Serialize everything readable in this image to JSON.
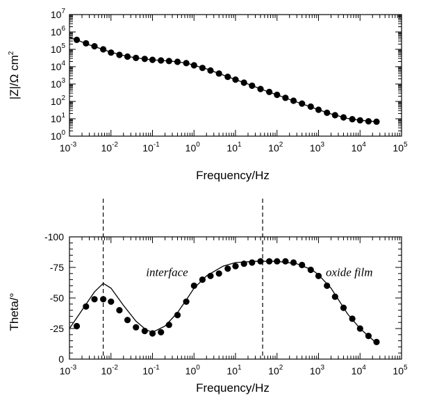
{
  "chart_data": [
    {
      "type": "scatter",
      "name_key": "impedance-modulus",
      "xlabel": "Frequency/Hz",
      "ylabel": "|Z|/Ω cm²",
      "x_scale": "log",
      "y_scale": "log",
      "xlim": [
        0.001,
        100000
      ],
      "ylim": [
        1,
        10000000
      ],
      "x_ticks": [
        {
          "base": "10",
          "exp": "-3"
        },
        {
          "base": "10",
          "exp": "-2"
        },
        {
          "base": "10",
          "exp": "-1"
        },
        {
          "base": "10",
          "exp": "0"
        },
        {
          "base": "10",
          "exp": "1"
        },
        {
          "base": "10",
          "exp": "2"
        },
        {
          "base": "10",
          "exp": "3"
        },
        {
          "base": "10",
          "exp": "4"
        },
        {
          "base": "10",
          "exp": "5"
        }
      ],
      "y_ticks": [
        {
          "base": "10",
          "exp": "0"
        },
        {
          "base": "10",
          "exp": "1"
        },
        {
          "base": "10",
          "exp": "2"
        },
        {
          "base": "10",
          "exp": "3"
        },
        {
          "base": "10",
          "exp": "4"
        },
        {
          "base": "10",
          "exp": "5"
        },
        {
          "base": "10",
          "exp": "6"
        },
        {
          "base": "10",
          "exp": "7"
        }
      ],
      "points": [
        [
          0.0015,
          350000
        ],
        [
          0.0025,
          220000
        ],
        [
          0.004,
          150000
        ],
        [
          0.0065,
          100000
        ],
        [
          0.01,
          65000
        ],
        [
          0.016,
          48000
        ],
        [
          0.025,
          38000
        ],
        [
          0.04,
          32000
        ],
        [
          0.065,
          28000
        ],
        [
          0.1,
          25000
        ],
        [
          0.16,
          23000
        ],
        [
          0.25,
          21000
        ],
        [
          0.4,
          19000
        ],
        [
          0.65,
          16000
        ],
        [
          1,
          12000
        ],
        [
          1.6,
          8500
        ],
        [
          2.5,
          6000
        ],
        [
          4,
          4000
        ],
        [
          6.5,
          2600
        ],
        [
          10,
          1800
        ],
        [
          16,
          1200
        ],
        [
          25,
          800
        ],
        [
          40,
          520
        ],
        [
          65,
          350
        ],
        [
          100,
          240
        ],
        [
          160,
          160
        ],
        [
          250,
          110
        ],
        [
          400,
          75
        ],
        [
          650,
          50
        ],
        [
          1000,
          33
        ],
        [
          1600,
          22
        ],
        [
          2500,
          16
        ],
        [
          4000,
          12
        ],
        [
          6500,
          9.5
        ],
        [
          10000,
          8.2
        ],
        [
          16000,
          7.2
        ],
        [
          25000,
          6.8
        ]
      ],
      "fit_curve": [
        [
          0.001,
          480000
        ],
        [
          0.0015,
          350000
        ],
        [
          0.003,
          180000
        ],
        [
          0.006,
          105000
        ],
        [
          0.01,
          68000
        ],
        [
          0.02,
          44000
        ],
        [
          0.04,
          32000
        ],
        [
          0.1,
          25000
        ],
        [
          0.2,
          22000
        ],
        [
          0.4,
          19000
        ],
        [
          0.7,
          15500
        ],
        [
          1,
          12000
        ],
        [
          2,
          7500
        ],
        [
          5,
          3300
        ],
        [
          10,
          1800
        ],
        [
          20,
          1000
        ],
        [
          50,
          430
        ],
        [
          100,
          240
        ],
        [
          200,
          130
        ],
        [
          500,
          60
        ],
        [
          1000,
          33
        ],
        [
          2000,
          19
        ],
        [
          5000,
          10.5
        ],
        [
          10000,
          8.2
        ],
        [
          25000,
          6.8
        ]
      ]
    },
    {
      "type": "scatter",
      "name_key": "phase-angle",
      "xlabel": "Frequency/Hz",
      "ylabel": "Theta/°",
      "x_scale": "log",
      "xlim": [
        0.001,
        100000
      ],
      "ylim": [
        0,
        -100
      ],
      "x_ticks": [
        {
          "base": "10",
          "exp": "-3"
        },
        {
          "base": "10",
          "exp": "-2"
        },
        {
          "base": "10",
          "exp": "-1"
        },
        {
          "base": "10",
          "exp": "0"
        },
        {
          "base": "10",
          "exp": "1"
        },
        {
          "base": "10",
          "exp": "2"
        },
        {
          "base": "10",
          "exp": "3"
        },
        {
          "base": "10",
          "exp": "4"
        },
        {
          "base": "10",
          "exp": "5"
        }
      ],
      "y_ticks": [
        "0",
        "-25",
        "-50",
        "-75",
        "-100"
      ],
      "y_tick_values": [
        0,
        -25,
        -50,
        -75,
        -100
      ],
      "points": [
        [
          0.0015,
          -27
        ],
        [
          0.0025,
          -43
        ],
        [
          0.004,
          -49
        ],
        [
          0.0065,
          -49
        ],
        [
          0.01,
          -47
        ],
        [
          0.016,
          -40
        ],
        [
          0.025,
          -32
        ],
        [
          0.04,
          -26
        ],
        [
          0.065,
          -23
        ],
        [
          0.1,
          -21
        ],
        [
          0.16,
          -22
        ],
        [
          0.25,
          -28
        ],
        [
          0.4,
          -36
        ],
        [
          0.65,
          -47
        ],
        [
          1,
          -60
        ],
        [
          1.6,
          -65
        ],
        [
          2.5,
          -68
        ],
        [
          4,
          -70
        ],
        [
          6.5,
          -74
        ],
        [
          10,
          -76
        ],
        [
          16,
          -78
        ],
        [
          25,
          -79
        ],
        [
          40,
          -80
        ],
        [
          65,
          -80
        ],
        [
          100,
          -80
        ],
        [
          160,
          -80
        ],
        [
          250,
          -79
        ],
        [
          400,
          -77
        ],
        [
          650,
          -73
        ],
        [
          1000,
          -68
        ],
        [
          1600,
          -60
        ],
        [
          2500,
          -51
        ],
        [
          4000,
          -42
        ],
        [
          6500,
          -33
        ],
        [
          10000,
          -25
        ],
        [
          16000,
          -19
        ],
        [
          25000,
          -14
        ]
      ],
      "fit_curve": [
        [
          0.001,
          -25
        ],
        [
          0.002,
          -40
        ],
        [
          0.004,
          -55
        ],
        [
          0.0065,
          -62
        ],
        [
          0.01,
          -58
        ],
        [
          0.02,
          -44
        ],
        [
          0.04,
          -31
        ],
        [
          0.07,
          -24
        ],
        [
          0.1,
          -22
        ],
        [
          0.2,
          -27
        ],
        [
          0.4,
          -38
        ],
        [
          0.7,
          -50
        ],
        [
          1,
          -58
        ],
        [
          2,
          -68
        ],
        [
          5,
          -76
        ],
        [
          10,
          -79
        ],
        [
          30,
          -80
        ],
        [
          100,
          -80
        ],
        [
          300,
          -78
        ],
        [
          700,
          -73
        ],
        [
          1000,
          -69
        ],
        [
          2000,
          -58
        ],
        [
          5000,
          -37
        ],
        [
          10000,
          -25
        ],
        [
          25000,
          -13
        ]
      ],
      "reference_lines_x": [
        0.0065,
        45
      ],
      "annotations": [
        {
          "text": "interface",
          "x": 0.07,
          "y": -68
        },
        {
          "text": "oxide film",
          "x": 1500,
          "y": -68
        }
      ]
    }
  ]
}
